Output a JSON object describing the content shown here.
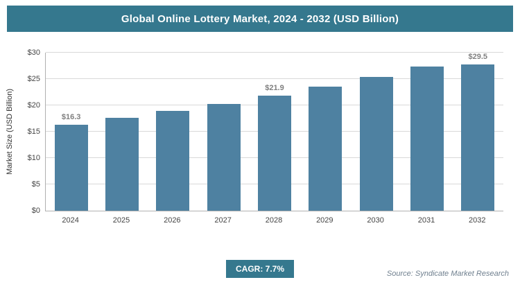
{
  "title": "Global Online Lottery Market, 2024 - 2032 (USD Billion)",
  "colors": {
    "header_bg": "#35788e",
    "bar": "#4e81a1",
    "grid": "#d9d9d9",
    "axis": "#b0b0b0",
    "value_label": "#7f7f7f"
  },
  "chart_data": {
    "type": "bar",
    "title": "Global Online Lottery Market, 2024 - 2032 (USD Billion)",
    "categories": [
      "2024",
      "2025",
      "2026",
      "2027",
      "2028",
      "2029",
      "2030",
      "2031",
      "2032"
    ],
    "values": [
      16.3,
      17.6,
      18.9,
      20.3,
      21.9,
      23.6,
      25.4,
      27.4,
      29.5
    ],
    "point_labels": [
      "$16.3",
      "",
      "",
      "",
      "$21.9",
      "",
      "",
      "",
      "$29.5"
    ],
    "xlabel": "",
    "ylabel": "Market Size (USD Billion)",
    "ylim": [
      0,
      30
    ],
    "yticks": [
      {
        "value": 0,
        "label": "$0"
      },
      {
        "value": 5,
        "label": "$5"
      },
      {
        "value": 10,
        "label": "$10"
      },
      {
        "value": 15,
        "label": "$15"
      },
      {
        "value": 20,
        "label": "$20"
      },
      {
        "value": 25,
        "label": "$25"
      },
      {
        "value": 30,
        "label": "$30"
      }
    ],
    "grid": true,
    "legend": false
  },
  "footer": {
    "cagr_label": "CAGR: 7.7%",
    "source": "Source: Syndicate Market Research"
  }
}
